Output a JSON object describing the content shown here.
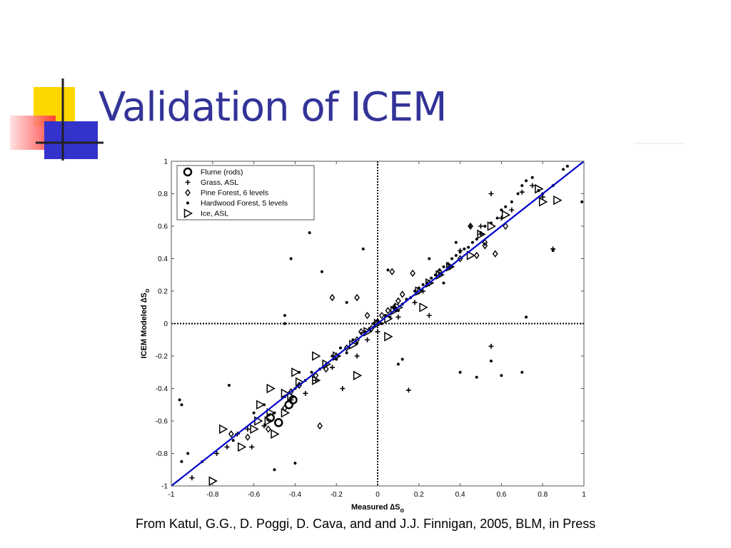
{
  "slide": {
    "title": "Validation of ICEM",
    "caption": "From Katul, G.G., D. Poggi, D. Cava, and and J.J. Finnigan, 2005, BLM, in Press"
  },
  "colors": {
    "title": "#333399",
    "logo_yellow": "#ffd700",
    "logo_red": "#ff3030",
    "logo_blue": "#3333cc",
    "fit_line": "#0000cc"
  },
  "chart_data": {
    "type": "scatter",
    "xlabel": "Measured ∆S",
    "xlabel_sub": "o",
    "ylabel": "ICEM Modeled ∆S",
    "ylabel_sub": "o",
    "xlim": [
      -1,
      1
    ],
    "ylim": [
      -1,
      1
    ],
    "x_ticks": [
      -1,
      -0.8,
      -0.6,
      -0.4,
      -0.2,
      0,
      0.2,
      0.4,
      0.6,
      0.8,
      1
    ],
    "y_ticks": [
      -1,
      -0.8,
      -0.6,
      -0.4,
      -0.2,
      0,
      0.2,
      0.4,
      0.6,
      0.8,
      1
    ],
    "tick_labels_x": [
      "-1",
      "-0.8",
      "-0.6",
      "-0.4",
      "-0.2",
      "0",
      "0.2",
      "0.4",
      "0.6",
      "0.8",
      "1"
    ],
    "tick_labels_y": [
      "-1",
      "-0.8",
      "-0.6",
      "-0.4",
      "-0.2",
      "0",
      "0.2",
      "0.4",
      "0.6",
      "0.8",
      "1"
    ],
    "grid": false,
    "reference_lines": {
      "x0_dotted": true,
      "y0_dotted": true,
      "one_to_one": true
    },
    "legend_position": "top-left",
    "series": [
      {
        "name": "Flume (rods)",
        "marker": "circle",
        "points": [
          [
            -0.52,
            -0.58
          ],
          [
            -0.48,
            -0.61
          ],
          [
            -0.41,
            -0.47
          ],
          [
            -0.43,
            -0.5
          ]
        ]
      },
      {
        "name": "Grass, ASL",
        "marker": "plus",
        "points": [
          [
            -0.9,
            -0.95
          ],
          [
            -0.78,
            -0.8
          ],
          [
            -0.73,
            -0.76
          ],
          [
            -0.61,
            -0.76
          ],
          [
            -0.55,
            -0.63
          ],
          [
            -0.42,
            -0.47
          ],
          [
            -0.35,
            -0.43
          ],
          [
            -0.3,
            -0.35
          ],
          [
            -0.22,
            -0.27
          ],
          [
            -0.17,
            -0.4
          ],
          [
            -0.05,
            -0.1
          ],
          [
            0.15,
            -0.41
          ],
          [
            0.1,
            0.04
          ],
          [
            0.18,
            0.13
          ],
          [
            0.22,
            0.2
          ],
          [
            0.35,
            0.35
          ],
          [
            0.3,
            0.3
          ],
          [
            0.4,
            0.45
          ],
          [
            0.5,
            0.55
          ],
          [
            0.55,
            0.8
          ],
          [
            0.55,
            -0.14
          ],
          [
            0.6,
            0.65
          ],
          [
            0.7,
            0.81
          ],
          [
            0.65,
            0.7
          ],
          [
            0.5,
            0.6
          ],
          [
            0.45,
            0.6
          ],
          [
            0.85,
            0.46
          ],
          [
            0.25,
            0.05
          ],
          [
            0.0,
            -0.05
          ],
          [
            -0.1,
            -0.2
          ],
          [
            -0.63,
            -0.65
          ],
          [
            -0.68,
            -0.68
          ],
          [
            0.8,
            0.78
          ],
          [
            0.75,
            0.85
          ]
        ]
      },
      {
        "name": "Pine Forest, 6 levels",
        "marker": "diamond",
        "points": [
          [
            -0.71,
            -0.68
          ],
          [
            -0.63,
            -0.7
          ],
          [
            -0.53,
            -0.65
          ],
          [
            -0.45,
            -0.52
          ],
          [
            -0.42,
            -0.42
          ],
          [
            -0.38,
            -0.38
          ],
          [
            -0.3,
            -0.32
          ],
          [
            -0.25,
            -0.28
          ],
          [
            -0.2,
            -0.2
          ],
          [
            -0.15,
            -0.15
          ],
          [
            -0.1,
            -0.1
          ],
          [
            -0.08,
            -0.05
          ],
          [
            -0.05,
            0.05
          ],
          [
            -0.03,
            -0.03
          ],
          [
            0.0,
            0.01
          ],
          [
            0.02,
            0.05
          ],
          [
            0.05,
            0.08
          ],
          [
            0.08,
            0.1
          ],
          [
            0.1,
            0.14
          ],
          [
            0.12,
            0.18
          ],
          [
            0.17,
            0.31
          ],
          [
            0.2,
            0.2
          ],
          [
            0.25,
            0.25
          ],
          [
            0.3,
            0.32
          ],
          [
            0.35,
            0.35
          ],
          [
            0.4,
            0.4
          ],
          [
            0.48,
            0.42
          ],
          [
            0.52,
            0.48
          ],
          [
            0.57,
            0.43
          ],
          [
            0.62,
            0.6
          ],
          [
            -0.28,
            -0.63
          ],
          [
            -0.1,
            0.16
          ],
          [
            -0.22,
            0.16
          ],
          [
            0.07,
            0.32
          ],
          [
            0.52,
            0.5
          ],
          [
            0.45,
            0.6
          ]
        ]
      },
      {
        "name": "Hardwood Forest, 5 levels",
        "marker": "dot",
        "points": [
          [
            -0.95,
            -0.5
          ],
          [
            -0.96,
            -0.47
          ],
          [
            -0.95,
            -0.85
          ],
          [
            -0.92,
            -0.8
          ],
          [
            -0.72,
            -0.38
          ],
          [
            -0.7,
            -0.72
          ],
          [
            -0.6,
            -0.55
          ],
          [
            -0.55,
            -0.5
          ],
          [
            -0.5,
            -0.55
          ],
          [
            -0.45,
            -0.45
          ],
          [
            -0.4,
            -0.4
          ],
          [
            -0.38,
            -0.3
          ],
          [
            -0.35,
            -0.35
          ],
          [
            -0.32,
            -0.3
          ],
          [
            -0.28,
            -0.28
          ],
          [
            -0.25,
            -0.25
          ],
          [
            -0.22,
            -0.2
          ],
          [
            -0.2,
            -0.22
          ],
          [
            -0.18,
            -0.15
          ],
          [
            -0.15,
            -0.18
          ],
          [
            -0.12,
            -0.1
          ],
          [
            -0.1,
            -0.12
          ],
          [
            -0.08,
            -0.06
          ],
          [
            -0.06,
            -0.05
          ],
          [
            -0.04,
            -0.03
          ],
          [
            -0.02,
            0.0
          ],
          [
            0.0,
            0.02
          ],
          [
            0.02,
            0.0
          ],
          [
            0.04,
            0.05
          ],
          [
            0.06,
            0.04
          ],
          [
            0.08,
            0.1
          ],
          [
            0.1,
            0.08
          ],
          [
            0.12,
            0.12
          ],
          [
            0.14,
            0.15
          ],
          [
            0.16,
            0.16
          ],
          [
            0.18,
            0.2
          ],
          [
            0.2,
            0.22
          ],
          [
            0.22,
            0.24
          ],
          [
            0.24,
            0.25
          ],
          [
            0.26,
            0.28
          ],
          [
            0.28,
            0.3
          ],
          [
            0.3,
            0.33
          ],
          [
            0.32,
            0.35
          ],
          [
            0.34,
            0.37
          ],
          [
            0.36,
            0.4
          ],
          [
            0.38,
            0.42
          ],
          [
            0.4,
            0.44
          ],
          [
            0.42,
            0.46
          ],
          [
            0.44,
            0.47
          ],
          [
            0.46,
            0.5
          ],
          [
            0.48,
            0.52
          ],
          [
            0.5,
            0.56
          ],
          [
            0.52,
            0.6
          ],
          [
            0.55,
            0.62
          ],
          [
            0.58,
            0.65
          ],
          [
            0.6,
            0.7
          ],
          [
            0.62,
            0.72
          ],
          [
            0.65,
            0.75
          ],
          [
            0.68,
            0.8
          ],
          [
            0.7,
            0.85
          ],
          [
            0.72,
            0.88
          ],
          [
            0.75,
            0.9
          ],
          [
            0.78,
            0.82
          ],
          [
            0.8,
            0.8
          ],
          [
            0.85,
            0.85
          ],
          [
            0.9,
            0.95
          ],
          [
            0.92,
            0.97
          ],
          [
            0.99,
            0.75
          ],
          [
            0.85,
            0.45
          ],
          [
            0.72,
            0.04
          ],
          [
            0.7,
            -0.3
          ],
          [
            0.6,
            -0.32
          ],
          [
            0.55,
            -0.23
          ],
          [
            0.48,
            -0.33
          ],
          [
            0.4,
            -0.3
          ],
          [
            -0.33,
            0.56
          ],
          [
            -0.27,
            0.32
          ],
          [
            -0.42,
            0.4
          ],
          [
            -0.45,
            0.05
          ],
          [
            -0.45,
            0.0
          ],
          [
            -0.4,
            -0.86
          ],
          [
            -0.5,
            -0.9
          ],
          [
            -0.85,
            -0.85
          ],
          [
            -0.07,
            0.46
          ],
          [
            0.05,
            0.33
          ],
          [
            -0.15,
            0.13
          ],
          [
            0.25,
            0.4
          ],
          [
            0.38,
            0.5
          ],
          [
            0.32,
            0.25
          ],
          [
            0.1,
            -0.25
          ],
          [
            0.12,
            -0.22
          ]
        ]
      },
      {
        "name": "Ice, ASL",
        "marker": "triangle-right",
        "points": [
          [
            -0.8,
            -0.97
          ],
          [
            -0.75,
            -0.65
          ],
          [
            -0.66,
            -0.76
          ],
          [
            -0.6,
            -0.65
          ],
          [
            -0.58,
            -0.6
          ],
          [
            -0.57,
            -0.5
          ],
          [
            -0.52,
            -0.55
          ],
          [
            -0.53,
            -0.6
          ],
          [
            -0.5,
            -0.68
          ],
          [
            -0.45,
            -0.55
          ],
          [
            -0.45,
            -0.43
          ],
          [
            -0.42,
            -0.45
          ],
          [
            -0.4,
            -0.3
          ],
          [
            -0.38,
            -0.36
          ],
          [
            -0.52,
            -0.4
          ],
          [
            -0.3,
            -0.35
          ],
          [
            -0.3,
            -0.2
          ],
          [
            -0.25,
            -0.25
          ],
          [
            -0.2,
            -0.2
          ],
          [
            -0.12,
            -0.13
          ],
          [
            -0.1,
            -0.32
          ],
          [
            -0.05,
            -0.05
          ],
          [
            0.0,
            0.0
          ],
          [
            0.05,
            0.03
          ],
          [
            0.08,
            0.08
          ],
          [
            0.05,
            -0.08
          ],
          [
            0.1,
            0.1
          ],
          [
            0.2,
            0.2
          ],
          [
            0.25,
            0.25
          ],
          [
            0.3,
            0.3
          ],
          [
            0.35,
            0.35
          ],
          [
            0.5,
            0.55
          ],
          [
            0.55,
            0.6
          ],
          [
            0.62,
            0.67
          ],
          [
            0.8,
            0.75
          ],
          [
            0.87,
            0.76
          ],
          [
            0.78,
            0.83
          ],
          [
            0.45,
            0.42
          ],
          [
            0.22,
            0.1
          ]
        ]
      }
    ]
  }
}
